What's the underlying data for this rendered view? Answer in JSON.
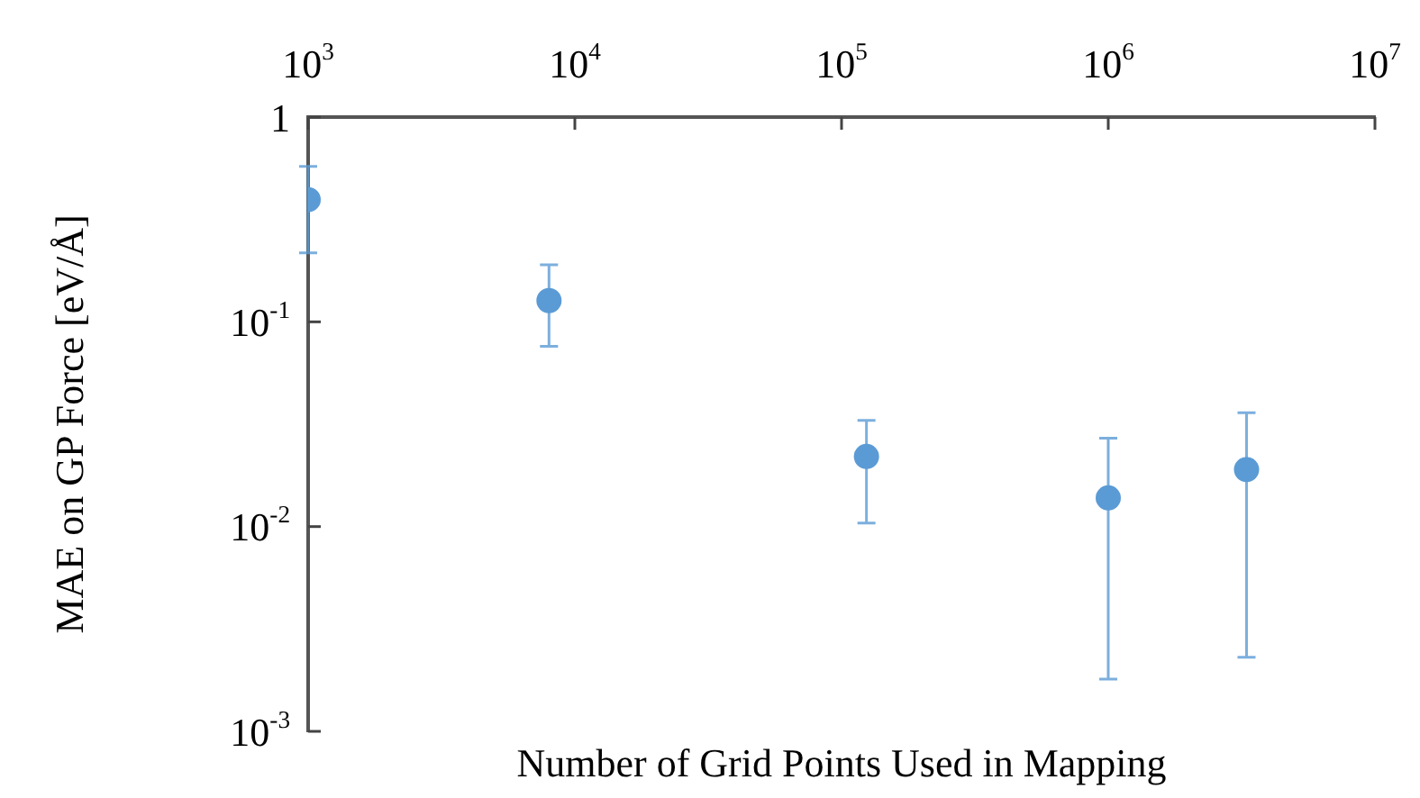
{
  "chart_data": {
    "type": "scatter",
    "xlabel": "Number of Grid Points Used in Mapping",
    "ylabel": "MAE on GP Force [eV/Å]",
    "x": [
      1000,
      8000,
      124000,
      1000000,
      3300000
    ],
    "series": [
      {
        "color": "#5b9bd5",
        "values": [
          0.395,
          0.127,
          0.022,
          0.0138,
          0.019
        ],
        "errors": [
          [
            0.217,
            0.575
          ],
          [
            0.076,
            0.19
          ],
          [
            0.0104,
            0.033
          ],
          [
            0.0018,
            0.027
          ],
          [
            0.0023,
            0.036
          ]
        ]
      }
    ],
    "log": "xy",
    "marker": "circle",
    "xlim": [
      1000,
      10000000
    ],
    "ylim": [
      0.001,
      1
    ],
    "xticks": [
      {
        "value": 1000,
        "label": "10$^{3}$"
      },
      {
        "value": 10000,
        "label": "10$^{4}$"
      },
      {
        "value": 100000,
        "label": "10$^{5}$"
      },
      {
        "value": 1000000,
        "label": "10$^{6}$"
      },
      {
        "value": 10000000,
        "label": "10$^{7}$"
      }
    ],
    "yticks": [
      {
        "value": 0.001,
        "label": "10$^{-3}$"
      },
      {
        "value": 0.01,
        "label": "10$^{-2}$"
      },
      {
        "value": 0.1,
        "label": "10$^{-1}$"
      },
      1
    ]
  }
}
